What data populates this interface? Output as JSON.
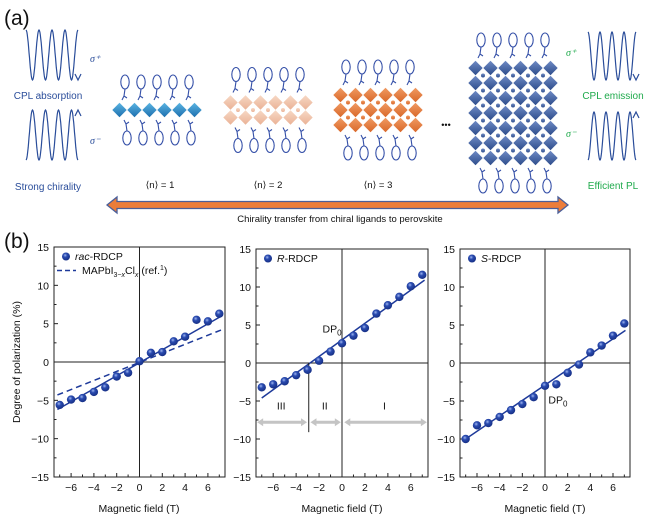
{
  "figure": {
    "panel_a_label": "(a)",
    "panel_b_label": "(b)",
    "schematic": {
      "left_sigma_plus": "σ⁺",
      "left_sigma_minus": "σ⁻",
      "cpl_absorption": "CPL absorption",
      "strong_chirality": "Strong chirality",
      "right_sigma_plus": "σ⁺",
      "right_sigma_minus": "σ⁻",
      "cpl_emission": "CPL emission",
      "efficient_pl": "Efficient PL",
      "structures": [
        {
          "label": "⟨n⟩ = 1",
          "layers": 1,
          "color": "#2e8fcc"
        },
        {
          "label": "⟨n⟩ = 2",
          "layers": 2,
          "color": "#f2c4a8"
        },
        {
          "label": "⟨n⟩ = 3",
          "layers": 3,
          "color": "#e07a3c"
        },
        {
          "label": "",
          "layers": 7,
          "color": "#3e5f9e"
        }
      ],
      "ellipsis": "•••",
      "arrow_caption": "Chirality transfer from chiral ligands to perovskite",
      "colors": {
        "wave": "#2a4d9a",
        "ligand": "#3550a8",
        "green": "#1faa4c",
        "arrow_fill": "#ec7d3a",
        "arrow_edge": "#4a5f9a"
      }
    }
  },
  "chart_data": [
    {
      "type": "scatter",
      "title": "",
      "legend": [
        {
          "name": "rac-RDCP",
          "italic_prefix": "rac",
          "suffix": "-RDCP",
          "marker": "circle"
        },
        {
          "name": "MAPbI3−xClx (ref.1)",
          "marker": "dashed-line"
        }
      ],
      "legend_placement": "top-left",
      "xlabel": "Magnetic field (T)",
      "ylabel": "Degree of polarization (%)",
      "xlim": [
        -7.5,
        7.5
      ],
      "ylim": [
        -15,
        15
      ],
      "xticks": [
        -6,
        -4,
        -2,
        0,
        2,
        4,
        6
      ],
      "yticks": [
        -15,
        -10,
        -5,
        0,
        5,
        10,
        15
      ],
      "series": [
        {
          "name": "rac-RDCP",
          "x": [
            -7,
            -6,
            -5,
            -4,
            -3,
            -2,
            -1,
            0,
            1,
            2,
            3,
            4,
            5,
            6,
            7
          ],
          "y": [
            -5.6,
            -4.9,
            -4.7,
            -3.9,
            -3.3,
            -1.9,
            -1.4,
            0.1,
            1.2,
            1.3,
            2.7,
            3.3,
            5.5,
            5.3,
            6.3
          ]
        }
      ],
      "fits": [
        {
          "name": "rac-RDCP fit",
          "style": "solid",
          "x": [
            -7.2,
            7.2
          ],
          "y": [
            -6.2,
            6.0
          ]
        },
        {
          "name": "MAPbI3−xClx (ref.1)",
          "style": "dashed",
          "x": [
            -7.2,
            7.2
          ],
          "y": [
            -4.3,
            4.2
          ]
        }
      ],
      "annotations": []
    },
    {
      "type": "scatter",
      "title": "",
      "legend": [
        {
          "name": "R-RDCP",
          "italic_prefix": "R",
          "suffix": "-RDCP",
          "marker": "circle"
        }
      ],
      "legend_placement": "top-left",
      "xlabel": "Magnetic field (T)",
      "ylabel": "",
      "xlim": [
        -7.5,
        7.5
      ],
      "ylim": [
        -15,
        15
      ],
      "xticks": [
        -6,
        -4,
        -2,
        0,
        2,
        4,
        6
      ],
      "yticks": [
        -15,
        -10,
        -5,
        0,
        5,
        10,
        15
      ],
      "series": [
        {
          "name": "R-RDCP",
          "x": [
            -7,
            -6,
            -5,
            -4,
            -3,
            -2,
            -1,
            0,
            1,
            2,
            3,
            4,
            5,
            6,
            7
          ],
          "y": [
            -3.2,
            -2.8,
            -2.4,
            -1.6,
            -0.9,
            0.3,
            1.5,
            2.6,
            3.6,
            4.6,
            6.5,
            7.6,
            8.7,
            10.1,
            11.6
          ]
        }
      ],
      "fits": [
        {
          "name": "R-RDCP fit",
          "style": "solid",
          "x": [
            -7,
            7.2
          ],
          "y": [
            -4.6,
            10.9
          ]
        }
      ],
      "annotations": [
        {
          "text": "DP",
          "sub": "0",
          "x": -1.7,
          "y": 4.0
        },
        {
          "type": "divider",
          "x": -2.9,
          "y": [
            0,
            -9.1
          ]
        },
        {
          "type": "region",
          "label": "III",
          "x": [
            -7.4,
            -3.05
          ],
          "y": -7.8,
          "label_x": -5.3,
          "label_y": -6.1
        },
        {
          "type": "region",
          "label": "II",
          "x": [
            -2.75,
            -0.1
          ],
          "y": -7.8,
          "label_x": -1.5,
          "label_y": -6.1
        },
        {
          "type": "region",
          "label": "I",
          "x": [
            0.2,
            7.4
          ],
          "y": -7.8,
          "label_x": 3.7,
          "label_y": -6.1
        }
      ]
    },
    {
      "type": "scatter",
      "title": "",
      "legend": [
        {
          "name": "S-RDCP",
          "italic_prefix": "S",
          "suffix": "-RDCP",
          "marker": "circle"
        }
      ],
      "legend_placement": "top-left",
      "xlabel": "Magnetic field (T)",
      "ylabel": "",
      "xlim": [
        -7.5,
        7.5
      ],
      "ylim": [
        -15,
        15
      ],
      "xticks": [
        -6,
        -4,
        -2,
        0,
        2,
        4,
        6
      ],
      "yticks": [
        -15,
        -10,
        -5,
        0,
        5,
        10,
        15
      ],
      "series": [
        {
          "name": "S-RDCP",
          "x": [
            -7,
            -6,
            -5,
            -4,
            -3,
            -2,
            -1,
            0,
            1,
            2,
            3,
            4,
            5,
            6,
            7
          ],
          "y": [
            -10.0,
            -8.2,
            -7.9,
            -7.1,
            -6.2,
            -5.4,
            -4.5,
            -3.0,
            -2.8,
            -1.3,
            -0.2,
            1.4,
            2.3,
            3.6,
            5.2
          ]
        }
      ],
      "fits": [
        {
          "name": "S-RDCP fit",
          "style": "solid",
          "x": [
            -7,
            7.1
          ],
          "y": [
            -10.0,
            4.3
          ]
        }
      ],
      "annotations": [
        {
          "text": "DP",
          "sub": "0",
          "x": 0.3,
          "y": -5.3
        }
      ]
    }
  ],
  "colors": {
    "marker": "#1e3a9a",
    "marker_highlight": "#8fa8e8",
    "fit_line": "#1e3a9a",
    "axis": "#222222",
    "region_arrow": "#c4c4c4"
  }
}
